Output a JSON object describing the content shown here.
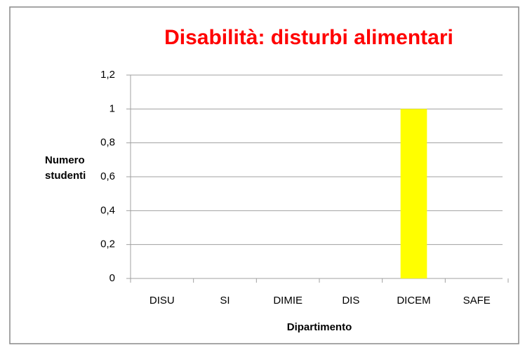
{
  "chart_data": {
    "type": "bar",
    "title": "Disabilità: disturbi alimentari",
    "x_label": "Dipartimento",
    "y_label": "Numero studenti",
    "categories": [
      "DISU",
      "SI",
      "DIMIE",
      "DIS",
      "DICEM",
      "SAFE"
    ],
    "values": [
      0,
      0,
      0,
      0,
      1,
      0
    ],
    "color": "#ffff00",
    "ylim": [
      0,
      1.2
    ],
    "yticks": [
      0,
      {
        "value": 0.2,
        "label": "0,2"
      },
      {
        "value": 0.4,
        "label": "0,4"
      },
      {
        "value": 0.6,
        "label": "0,6"
      },
      {
        "value": 0.8,
        "label": "0,8"
      },
      1,
      {
        "value": 1.2,
        "label": "1,2"
      }
    ],
    "grid": true
  }
}
